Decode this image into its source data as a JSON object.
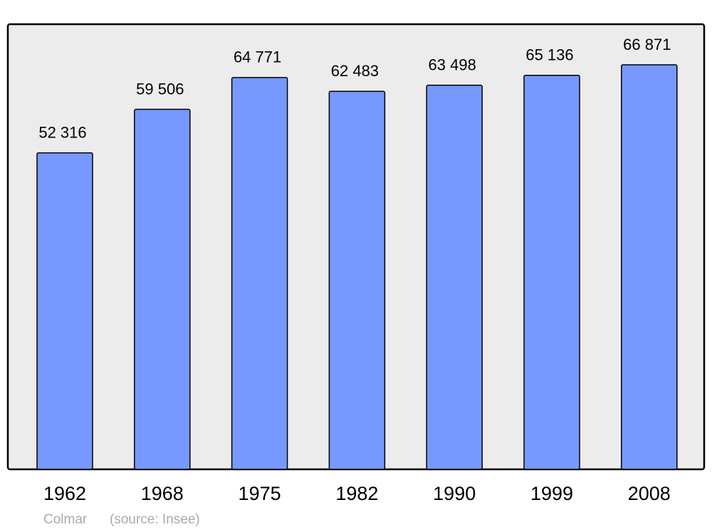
{
  "chart_data": {
    "type": "bar",
    "categories": [
      "1962",
      "1968",
      "1975",
      "1982",
      "1990",
      "1999",
      "2008"
    ],
    "values": [
      52316,
      59506,
      64771,
      62483,
      63498,
      65136,
      66871
    ],
    "value_labels": [
      "52 316",
      "59 506",
      "64 771",
      "62 483",
      "63 498",
      "65 136",
      "66 871"
    ],
    "color": "#7799ff",
    "footer": {
      "place": "Colmar",
      "source": "(source: Insee)"
    }
  }
}
